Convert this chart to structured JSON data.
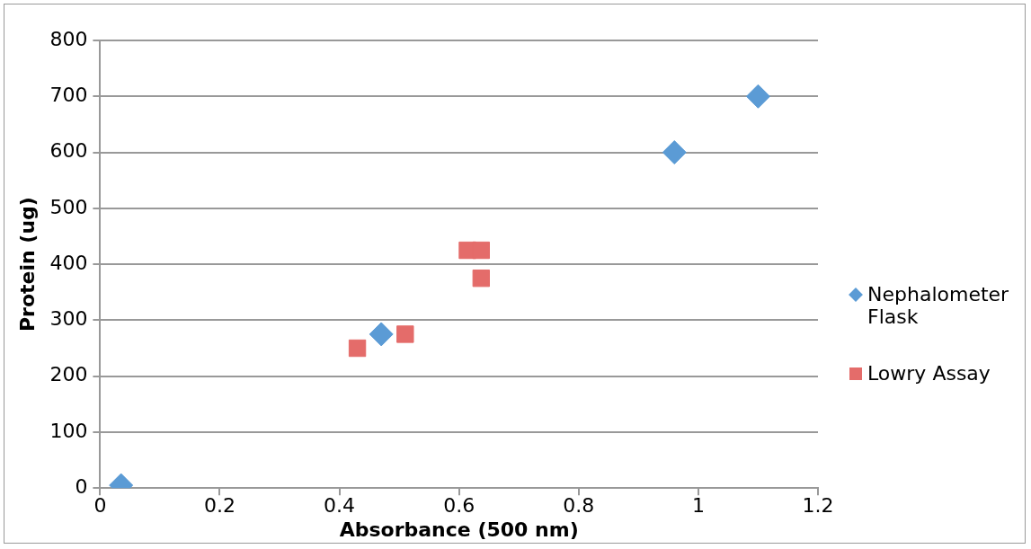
{
  "chart_data": {
    "type": "scatter",
    "xlabel": "Absorbance (500 nm)",
    "ylabel": "Protein (ug)",
    "xlim": [
      0,
      1.2
    ],
    "xticks": [
      0,
      0.2,
      0.4,
      0.6,
      0.8,
      1,
      1.2
    ],
    "ylim": [
      0,
      800
    ],
    "yticks": [
      0,
      100,
      200,
      300,
      400,
      500,
      600,
      700,
      800
    ],
    "grid": "y",
    "legend": "right",
    "series": [
      {
        "name": "Nephalometer Flask",
        "color": "#5b9bd5",
        "marker": "diamond",
        "x": [
          0.035,
          0.47,
          0.96,
          1.1
        ],
        "values": [
          5,
          275,
          600,
          700
        ]
      },
      {
        "name": "Lowry Assay",
        "color": "#e46c6a",
        "marker": "square",
        "x": [
          0.43,
          0.51,
          0.614,
          0.637,
          0.637
        ],
        "values": [
          250,
          275,
          425,
          425,
          375
        ]
      }
    ]
  }
}
